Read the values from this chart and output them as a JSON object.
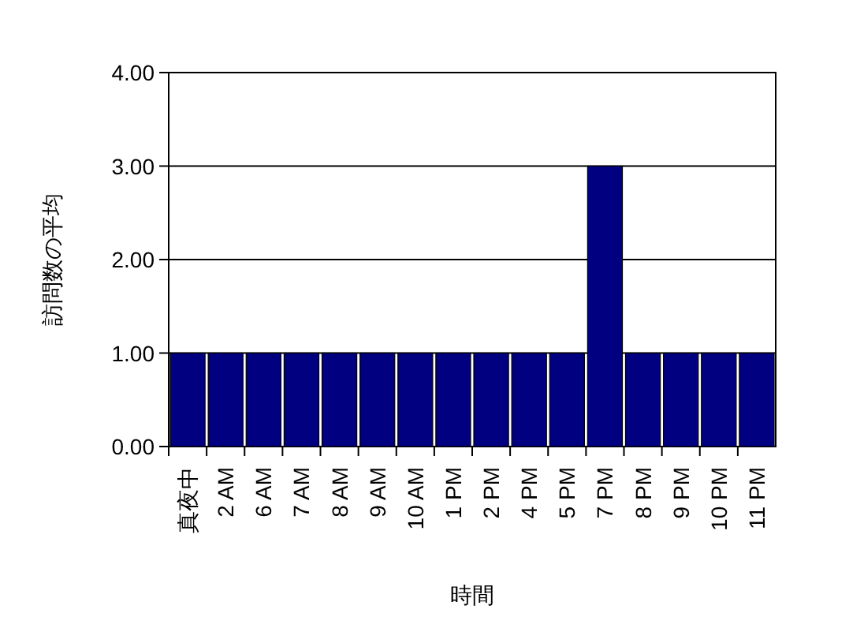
{
  "chart_data": {
    "type": "bar",
    "xlabel": "時間",
    "ylabel": "訪問数の平均",
    "categories": [
      "真夜中",
      "2 AM",
      "6 AM",
      "7 AM",
      "8 AM",
      "9 AM",
      "10 AM",
      "1 PM",
      "2 PM",
      "4 PM",
      "5 PM",
      "7 PM",
      "8 PM",
      "9 PM",
      "10 PM",
      "11 PM"
    ],
    "values": [
      1,
      1,
      1,
      1,
      1,
      1,
      1,
      1,
      1,
      1,
      1,
      3,
      1,
      1,
      1,
      1
    ],
    "color": "#000080",
    "ylim": [
      0,
      4
    ],
    "yticks": [
      {
        "value": 0,
        "label": "0.00"
      },
      {
        "value": 1,
        "label": "1.00"
      },
      {
        "value": 2,
        "label": "2.00"
      },
      {
        "value": 3,
        "label": "3.00"
      },
      {
        "value": 4,
        "label": "4.00"
      }
    ],
    "grid": "y"
  }
}
